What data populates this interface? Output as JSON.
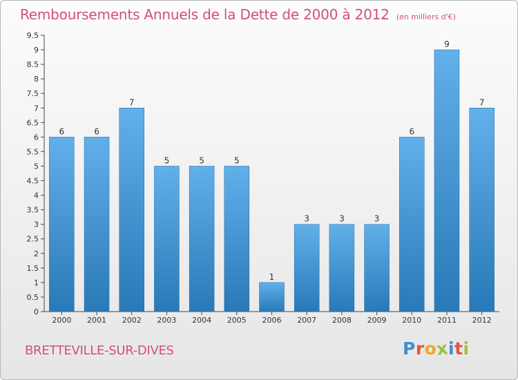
{
  "title": "Remboursements Annuels de la Dette de 2000 à 2012",
  "unit": "(en milliers d'€)",
  "city": "BRETTEVILLE-SUR-DIVES",
  "logo": {
    "letters": [
      "P",
      "r",
      "o",
      "x",
      "i",
      "t",
      "i"
    ],
    "colors": [
      "#3a8fd0",
      "#e8553a",
      "#f2a628",
      "#9bc33c",
      "#3a8fd0",
      "#e8553a",
      "#9bc33c"
    ]
  },
  "colors": {
    "bar_top": "#62b0ea",
    "bar_bottom": "#2979b8",
    "accent": "#d24d84"
  },
  "chart_data": {
    "type": "bar",
    "categories": [
      "2000",
      "2001",
      "2002",
      "2003",
      "2004",
      "2005",
      "2006",
      "2007",
      "2008",
      "2009",
      "2010",
      "2011",
      "2012"
    ],
    "values": [
      6,
      6,
      7,
      5,
      5,
      5,
      1,
      3,
      3,
      3,
      6,
      9,
      7
    ],
    "value_labels": [
      "6",
      "6",
      "7",
      "5",
      "5",
      "5",
      "1",
      "3",
      "3",
      "3",
      "6",
      "9",
      "7"
    ],
    "ylim": [
      0,
      9.5
    ],
    "yticks": [
      0,
      0.5,
      1,
      1.5,
      2,
      2.5,
      3,
      3.5,
      4,
      4.5,
      5,
      5.5,
      6,
      6.5,
      7,
      7.5,
      8,
      8.5,
      9,
      9.5
    ],
    "ytick_labels": [
      "0",
      "0.5",
      "1",
      "1.5",
      "2",
      "2.5",
      "3",
      "3.5",
      "4",
      "4.5",
      "5",
      "5.5",
      "6",
      "6.5",
      "7",
      "7.5",
      "8",
      "8.5",
      "9",
      "9.5"
    ],
    "grid": false,
    "legend": "none"
  }
}
